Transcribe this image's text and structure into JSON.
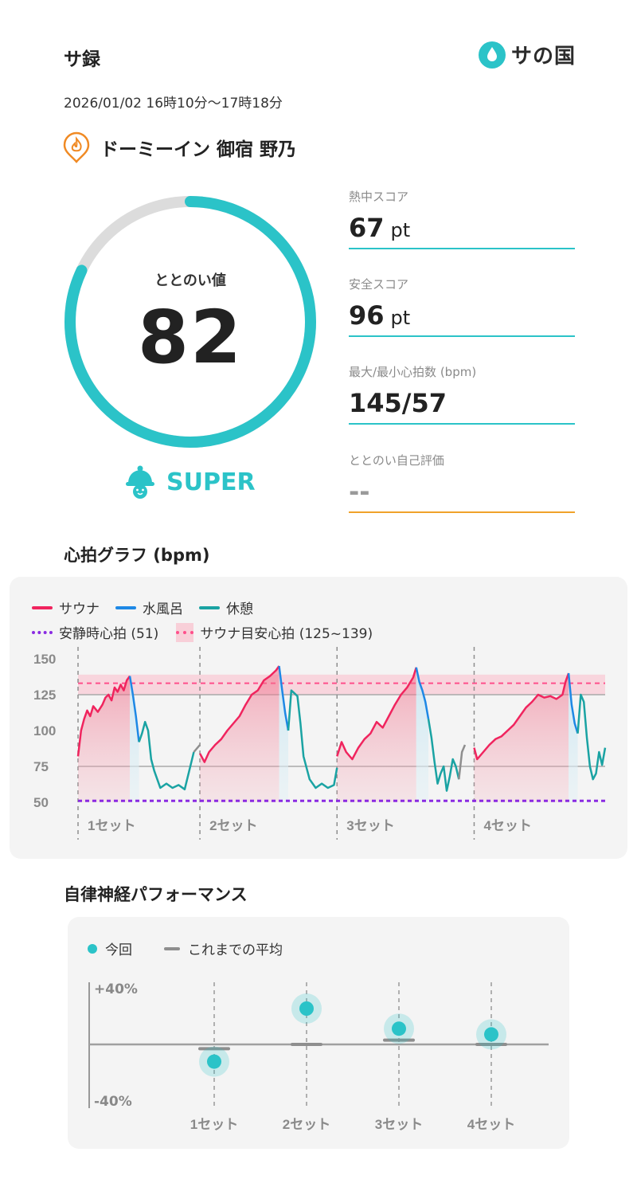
{
  "header": {
    "title": "サ録",
    "brand": "サの国",
    "datetime": "2026/01/02 16時10分〜17時18分"
  },
  "facility": {
    "name": "ドーミーイン 御宿 野乃"
  },
  "totonoi": {
    "label": "ととのい値",
    "value": "82",
    "score": 82,
    "rank": "SUPER"
  },
  "metrics": {
    "heat": {
      "label": "熱中スコア",
      "value": "67",
      "unit": "pt"
    },
    "safety": {
      "label": "安全スコア",
      "value": "96",
      "unit": "pt"
    },
    "hr": {
      "label": "最大/最小心拍数 (bpm)",
      "value": "145/57"
    },
    "self_eval": {
      "label": "ととのい自己評価",
      "value": "--"
    }
  },
  "heart_graph": {
    "title": "心拍グラフ (bpm)",
    "legend": {
      "sauna": "サウナ",
      "cold": "水風呂",
      "rest": "休憩",
      "resting": "安静時心拍 (51)",
      "target": "サウナ目安心拍 (125~139)"
    },
    "colors": {
      "sauna": "#f0245e",
      "cold": "#1e88e5",
      "rest": "#1aa3a3",
      "transition": "#8e8e8e",
      "resting": "#8a2be2",
      "target": "#ff4f8b"
    }
  },
  "chart_data": [
    {
      "type": "line",
      "title": "心拍グラフ (bpm)",
      "ylabel": "",
      "ylim": [
        45,
        155
      ],
      "yticks": [
        150,
        125,
        100,
        75,
        50
      ],
      "reference_lines": {
        "resting": 51,
        "target_low": 125,
        "target_high": 139,
        "target_mid": 133,
        "grid": [
          125,
          75
        ]
      },
      "sets": [
        {
          "label": "1セット",
          "sauna": [
            [
              0,
              82
            ],
            [
              2,
              100
            ],
            [
              4,
              108
            ],
            [
              6,
              114
            ],
            [
              8,
              110
            ],
            [
              10,
              117
            ],
            [
              13,
              113
            ],
            [
              16,
              118
            ],
            [
              18,
              123
            ],
            [
              20,
              125
            ],
            [
              22,
              121
            ],
            [
              24,
              130
            ],
            [
              26,
              127
            ],
            [
              28,
              132
            ],
            [
              30,
              128
            ],
            [
              32,
              135
            ],
            [
              34,
              138
            ]
          ],
          "cold": [
            [
              34,
              138
            ],
            [
              36,
              125
            ],
            [
              38,
              110
            ],
            [
              40,
              92
            ]
          ],
          "rest": [
            [
              40,
              92
            ],
            [
              42,
              98
            ],
            [
              44,
              106
            ],
            [
              46,
              100
            ],
            [
              48,
              80
            ],
            [
              50,
              72
            ],
            [
              52,
              66
            ],
            [
              54,
              60
            ],
            [
              58,
              63
            ],
            [
              62,
              60
            ],
            [
              66,
              62
            ],
            [
              70,
              59
            ],
            [
              73,
              72
            ],
            [
              76,
              85
            ]
          ],
          "transition": [
            [
              76,
              85
            ],
            [
              80,
              90
            ]
          ]
        },
        {
          "label": "2セット",
          "sauna": [
            [
              80,
              84
            ],
            [
              83,
              78
            ],
            [
              86,
              85
            ],
            [
              90,
              90
            ],
            [
              94,
              94
            ],
            [
              98,
              100
            ],
            [
              102,
              105
            ],
            [
              106,
              110
            ],
            [
              110,
              118
            ],
            [
              114,
              125
            ],
            [
              118,
              128
            ],
            [
              122,
              135
            ],
            [
              126,
              138
            ],
            [
              130,
              142
            ],
            [
              132,
              145
            ]
          ],
          "cold": [
            [
              132,
              145
            ],
            [
              134,
              128
            ],
            [
              136,
              112
            ],
            [
              138,
              100
            ]
          ],
          "rest": [
            [
              138,
              100
            ],
            [
              140,
              128
            ],
            [
              142,
              126
            ],
            [
              144,
              124
            ],
            [
              146,
              105
            ],
            [
              148,
              82
            ],
            [
              152,
              66
            ],
            [
              156,
              60
            ],
            [
              160,
              63
            ],
            [
              164,
              60
            ],
            [
              168,
              62
            ],
            [
              170,
              74
            ]
          ],
          "transition": []
        },
        {
          "label": "3セット",
          "sauna": [
            [
              170,
              82
            ],
            [
              173,
              92
            ],
            [
              176,
              85
            ],
            [
              180,
              80
            ],
            [
              184,
              88
            ],
            [
              188,
              94
            ],
            [
              192,
              98
            ],
            [
              196,
              106
            ],
            [
              200,
              102
            ],
            [
              204,
              110
            ],
            [
              208,
              118
            ],
            [
              212,
              125
            ],
            [
              216,
              130
            ],
            [
              220,
              137
            ],
            [
              222,
              144
            ]
          ],
          "cold": [
            [
              222,
              144
            ],
            [
              224,
              134
            ],
            [
              226,
              128
            ],
            [
              228,
              120
            ],
            [
              230,
              108
            ]
          ],
          "rest": [
            [
              230,
              108
            ],
            [
              232,
              95
            ],
            [
              234,
              78
            ],
            [
              236,
              63
            ],
            [
              238,
              70
            ],
            [
              240,
              75
            ],
            [
              242,
              58
            ],
            [
              244,
              68
            ],
            [
              246,
              80
            ],
            [
              248,
              75
            ],
            [
              250,
              66
            ]
          ],
          "transition": [
            [
              250,
              66
            ],
            [
              252,
              85
            ],
            [
              254,
              90
            ]
          ]
        },
        {
          "label": "4セット",
          "sauna": [
            [
              260,
              88
            ],
            [
              262,
              80
            ],
            [
              266,
              85
            ],
            [
              270,
              90
            ],
            [
              274,
              94
            ],
            [
              278,
              96
            ],
            [
              282,
              100
            ],
            [
              286,
              104
            ],
            [
              290,
              110
            ],
            [
              294,
              116
            ],
            [
              298,
              120
            ],
            [
              302,
              125
            ],
            [
              306,
              123
            ],
            [
              310,
              124
            ],
            [
              314,
              122
            ],
            [
              318,
              125
            ],
            [
              320,
              134
            ],
            [
              322,
              140
            ]
          ],
          "cold": [
            [
              322,
              140
            ],
            [
              324,
              118
            ],
            [
              326,
              105
            ],
            [
              328,
              98
            ]
          ],
          "rest": [
            [
              328,
              98
            ],
            [
              330,
              125
            ],
            [
              332,
              120
            ],
            [
              334,
              95
            ],
            [
              336,
              75
            ],
            [
              338,
              66
            ],
            [
              340,
              70
            ],
            [
              342,
              85
            ],
            [
              344,
              76
            ],
            [
              346,
              88
            ]
          ],
          "transition": []
        }
      ]
    },
    {
      "type": "scatter",
      "title": "自律神経パフォーマンス",
      "ylim": [
        -40,
        40
      ],
      "categories": [
        "1セット",
        "2セット",
        "3セット",
        "4セット"
      ],
      "series": [
        {
          "name": "今回",
          "values": [
            -12,
            25,
            11,
            7
          ]
        },
        {
          "name": "これまでの平均",
          "values": [
            -3,
            0,
            3,
            0
          ]
        }
      ]
    }
  ],
  "heart_axis": {
    "y_labels": [
      "150",
      "125",
      "100",
      "75",
      "50"
    ],
    "set_labels": [
      "1セット",
      "2セット",
      "3セット",
      "4セット"
    ]
  },
  "ans": {
    "title": "自律神経パフォーマンス",
    "legend_current": "今回",
    "legend_avg": "これまでの平均",
    "y_top": "+40%",
    "y_bottom": "-40%",
    "colors": {
      "current": "#2bc3c8",
      "avg": "#8e8e8e"
    }
  }
}
